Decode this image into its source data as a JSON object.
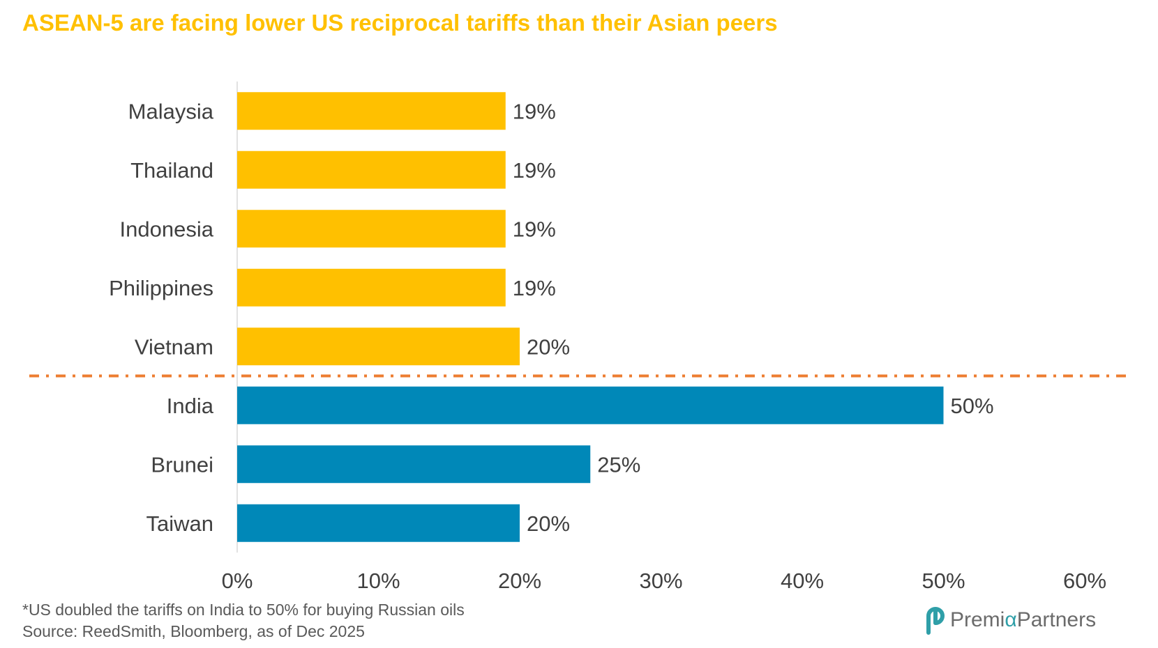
{
  "title": "ASEAN-5 are facing lower US reciprocal tariffs than their Asian peers",
  "chart_data": {
    "type": "bar",
    "orientation": "horizontal",
    "categories": [
      "Malaysia",
      "Thailand",
      "Indonesia",
      "Philippines",
      "Vietnam",
      "India",
      "Brunei",
      "Taiwan"
    ],
    "values": [
      19,
      19,
      19,
      19,
      20,
      50,
      25,
      20
    ],
    "data_labels": [
      "19%",
      "19%",
      "19%",
      "19%",
      "20%",
      "50%",
      "25%",
      "20%"
    ],
    "groups": [
      "ASEAN-5",
      "ASEAN-5",
      "ASEAN-5",
      "ASEAN-5",
      "ASEAN-5",
      "Peers",
      "Peers",
      "Peers"
    ],
    "group_colors": {
      "ASEAN-5": "#FFC000",
      "Peers": "#0088B8"
    },
    "separator_color": "#ED7D31",
    "separator_after_index": 4,
    "xlim": [
      0,
      60
    ],
    "xticks": [
      0,
      10,
      20,
      30,
      40,
      50,
      60
    ],
    "xtick_labels": [
      "0%",
      "10%",
      "20%",
      "30%",
      "40%",
      "50%",
      "60%"
    ],
    "xlabel": "",
    "ylabel": "",
    "grid": false,
    "legend": "none"
  },
  "footnotes": {
    "note": "*US doubled the tariffs on India to 50% for buying Russian oils",
    "source": "Source:  ReedSmith, Bloomberg, as of Dec 2025"
  },
  "logo": {
    "name_main": "Premi",
    "name_accent": "α",
    "name_suffix": "Partners"
  },
  "colors": {
    "title": "#FFC000",
    "text": "#404040",
    "footnote": "#595959"
  }
}
